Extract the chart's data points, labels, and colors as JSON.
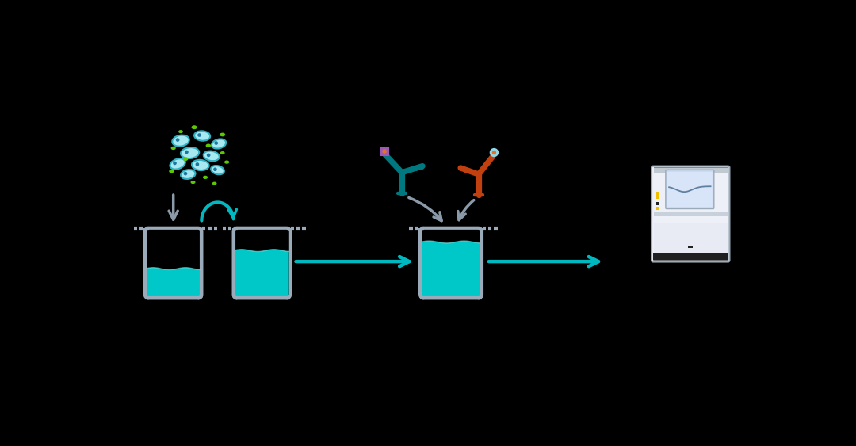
{
  "background_color": "#000000",
  "teal_color": "#00C8C8",
  "teal_liquid": "#00C8C8",
  "teal_liquid_light": "#80E8E8",
  "green_dot_color": "#5CC800",
  "blue_cell_fill": "#A8E8F0",
  "blue_cell_border": "#30B0C0",
  "blue_cell_eye": "#1878A0",
  "gray_arrow": "#8A9AA8",
  "teal_arrow": "#00B8C0",
  "ab1_color": "#007880",
  "ab1_tag_fill": "#9B59B6",
  "ab1_tag_dot": "#E87020",
  "ab2_color": "#C04010",
  "ab2_tag_fill": "#90D8E8",
  "ab2_tag_dot": "#E87020",
  "well_border": "#9AAAB8",
  "well_fill": "#9AAAB8",
  "well_rounded": "#9AAAB8",
  "reader_body": "#EEF0F8",
  "reader_top_bar": "#C0C8D0",
  "reader_screen_bg": "#C8D8F0",
  "reader_screen_inner": "#D8E4F8",
  "reader_yellow": "#F0C000",
  "reader_black": "#202020",
  "reader_separator": "#C8D0DC",
  "reader_lower": "#E8EAF4"
}
